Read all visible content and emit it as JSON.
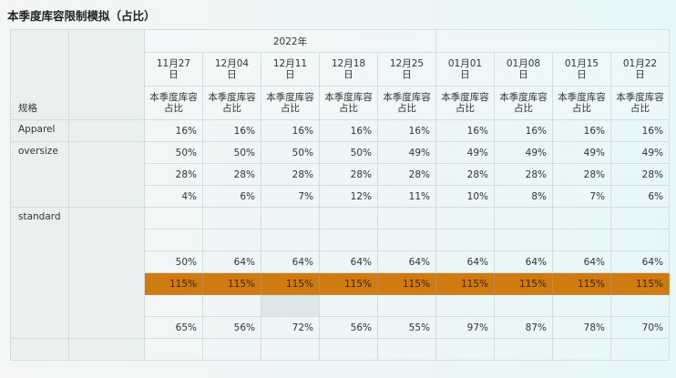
{
  "title": "本季度库容限制模拟（占比）",
  "year_label": "2022年",
  "spec_label": "规格",
  "metric_label": "本季度库容占比",
  "weeks": [
    "11月27日",
    "12月04日",
    "12月11日",
    "12月18日",
    "12月25日",
    "01月01日",
    "01月08日",
    "01月15日",
    "01月22日"
  ],
  "row_labels": {
    "apparel": "Apparel",
    "oversize": "oversize",
    "standard": "standard"
  },
  "rows": {
    "apparel": [
      "16%",
      "16%",
      "16%",
      "16%",
      "16%",
      "16%",
      "16%",
      "16%",
      "16%"
    ],
    "oversize1": [
      "50%",
      "50%",
      "50%",
      "50%",
      "49%",
      "49%",
      "49%",
      "49%",
      "49%"
    ],
    "oversize2": [
      "28%",
      "28%",
      "28%",
      "28%",
      "28%",
      "28%",
      "28%",
      "28%",
      "28%"
    ],
    "oversize3": [
      "4%",
      "6%",
      "7%",
      "12%",
      "11%",
      "10%",
      "8%",
      "7%",
      "6%"
    ],
    "standard3": [
      "50%",
      "64%",
      "64%",
      "64%",
      "64%",
      "64%",
      "64%",
      "64%",
      "64%"
    ],
    "standard4": [
      "115%",
      "115%",
      "115%",
      "115%",
      "115%",
      "115%",
      "115%",
      "115%",
      "115%"
    ],
    "standard6": [
      "65%",
      "56%",
      "72%",
      "56%",
      "55%",
      "97%",
      "87%",
      "78%",
      "70%"
    ]
  },
  "highlight_color": "#d07b0f"
}
